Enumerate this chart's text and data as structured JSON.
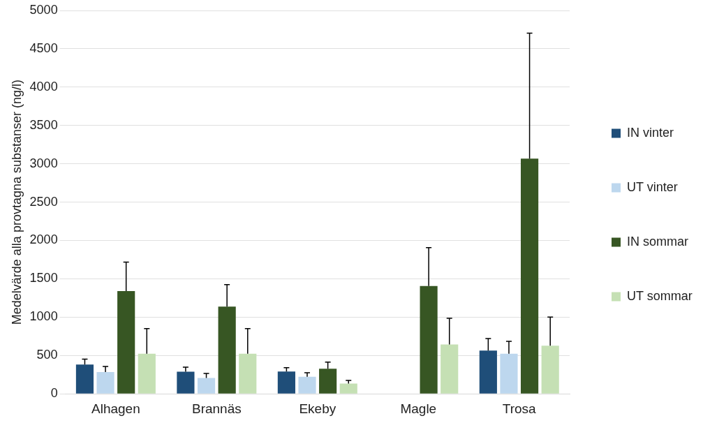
{
  "chart_data": {
    "type": "bar",
    "ylabel": "Medelvärde alla provtagna substanser (ng/l)",
    "categories": [
      "Alhagen",
      "Brannäs",
      "Ekeby",
      "Magle",
      "Trosa"
    ],
    "series": [
      {
        "name": "IN vinter",
        "color": "#1f4e79",
        "values": [
          381,
          288,
          291,
          null,
          563
        ],
        "errors": [
          72,
          59,
          50,
          null,
          159
        ]
      },
      {
        "name": "UT vinter",
        "color": "#bdd7ee",
        "values": [
          284,
          206,
          222,
          null,
          522
        ],
        "errors": [
          72,
          60,
          53,
          null,
          162
        ]
      },
      {
        "name": "IN sommar",
        "color": "#375623",
        "values": [
          1341,
          1138,
          328,
          1406,
          3067
        ],
        "errors": [
          378,
          287,
          85,
          500,
          1638
        ]
      },
      {
        "name": "UT sommar",
        "color": "#c5e0b4",
        "values": [
          522,
          522,
          134,
          644,
          628
        ],
        "errors": [
          328,
          328,
          41,
          340,
          372
        ]
      }
    ],
    "ylim": [
      0,
      5000
    ],
    "yticks": [
      0,
      500,
      1000,
      1500,
      2000,
      2500,
      3000,
      3500,
      4000,
      4500,
      5000
    ],
    "grid": "y",
    "legend": "right"
  }
}
